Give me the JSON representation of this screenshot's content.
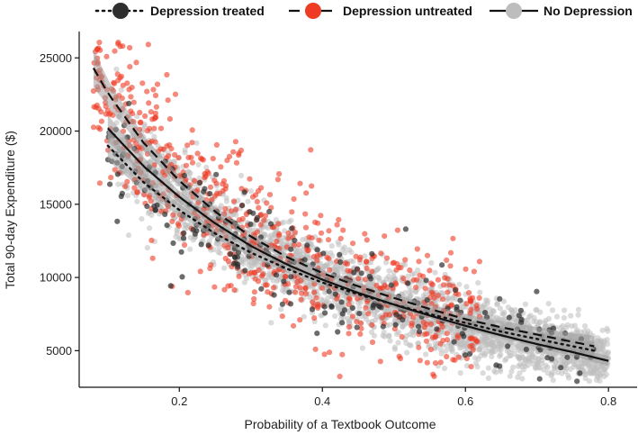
{
  "chart_data": {
    "type": "scatter",
    "title": "",
    "xlabel": "Probability of a Textbook Outcome",
    "ylabel": "Total 90-day Expenditure ($)",
    "xlim": [
      0.06,
      0.84
    ],
    "ylim": [
      2500,
      26800
    ],
    "x_ticks": [
      0.2,
      0.4,
      0.6,
      0.8
    ],
    "x_tick_labels": [
      "0.2",
      "0.4",
      "0.6",
      "0.8"
    ],
    "y_ticks": [
      5000,
      10000,
      15000,
      20000,
      25000
    ],
    "y_tick_labels": [
      "5000",
      "10000",
      "15000",
      "20000",
      "25000"
    ],
    "grid": false,
    "legend_position": "top",
    "series": [
      {
        "name": "No Depression",
        "point_color": "#bdbdbd",
        "line_color": "#111111",
        "line_style": "solid",
        "band_color": "#9e9e9e",
        "fit_x": [
          0.1,
          0.15,
          0.2,
          0.25,
          0.3,
          0.35,
          0.4,
          0.45,
          0.5,
          0.55,
          0.6,
          0.65,
          0.7,
          0.75,
          0.8
        ],
        "fit_y": [
          20200,
          17600,
          15500,
          13700,
          12150,
          10900,
          9850,
          8950,
          8150,
          7400,
          6700,
          6050,
          5450,
          4900,
          4300
        ],
        "band_width": [
          900,
          600,
          400,
          300,
          250,
          220,
          200,
          180,
          170,
          170,
          180,
          200,
          230,
          280,
          350
        ],
        "point_cloud": {
          "n": 2600,
          "x_range": [
            0.11,
            0.8
          ],
          "spread": 1500
        }
      },
      {
        "name": "Depression untreated",
        "point_color": "#ee3b24",
        "line_color": "#111111",
        "line_style": "dashed",
        "band_color": "#9e9e9e",
        "fit_x": [
          0.08,
          0.1,
          0.15,
          0.2,
          0.25,
          0.3,
          0.35,
          0.4,
          0.45,
          0.5,
          0.55,
          0.6,
          0.65,
          0.7,
          0.75,
          0.78
        ],
        "fit_y": [
          24300,
          22600,
          19200,
          16600,
          14500,
          12800,
          11400,
          10300,
          9400,
          8600,
          7850,
          7150,
          6600,
          6100,
          5600,
          5300
        ],
        "band_width": [
          1300,
          900,
          500,
          350,
          280,
          250,
          240,
          240,
          250,
          270,
          300,
          350,
          420,
          500,
          600,
          700
        ],
        "point_cloud": {
          "n": 700,
          "x_range": [
            0.08,
            0.62
          ],
          "spread": 2600
        }
      },
      {
        "name": "Depression treated",
        "point_color": "#2e2e2e",
        "line_color": "#111111",
        "line_style": "dotted",
        "band_color": "#9e9e9e",
        "fit_x": [
          0.1,
          0.15,
          0.2,
          0.25,
          0.3,
          0.35,
          0.4,
          0.45,
          0.5,
          0.55,
          0.6,
          0.65,
          0.7,
          0.75,
          0.78
        ],
        "fit_y": [
          19000,
          16500,
          14600,
          13000,
          11700,
          10600,
          9650,
          8850,
          8150,
          7500,
          6900,
          6300,
          5800,
          5300,
          5000
        ],
        "band_width": [
          1000,
          600,
          400,
          320,
          280,
          260,
          250,
          250,
          260,
          280,
          310,
          360,
          420,
          500,
          560
        ],
        "point_cloud": {
          "n": 260,
          "x_range": [
            0.1,
            0.78
          ],
          "spread": 1800
        }
      }
    ],
    "legend_order": [
      "Depression treated",
      "Depression untreated",
      "No Depression"
    ]
  }
}
